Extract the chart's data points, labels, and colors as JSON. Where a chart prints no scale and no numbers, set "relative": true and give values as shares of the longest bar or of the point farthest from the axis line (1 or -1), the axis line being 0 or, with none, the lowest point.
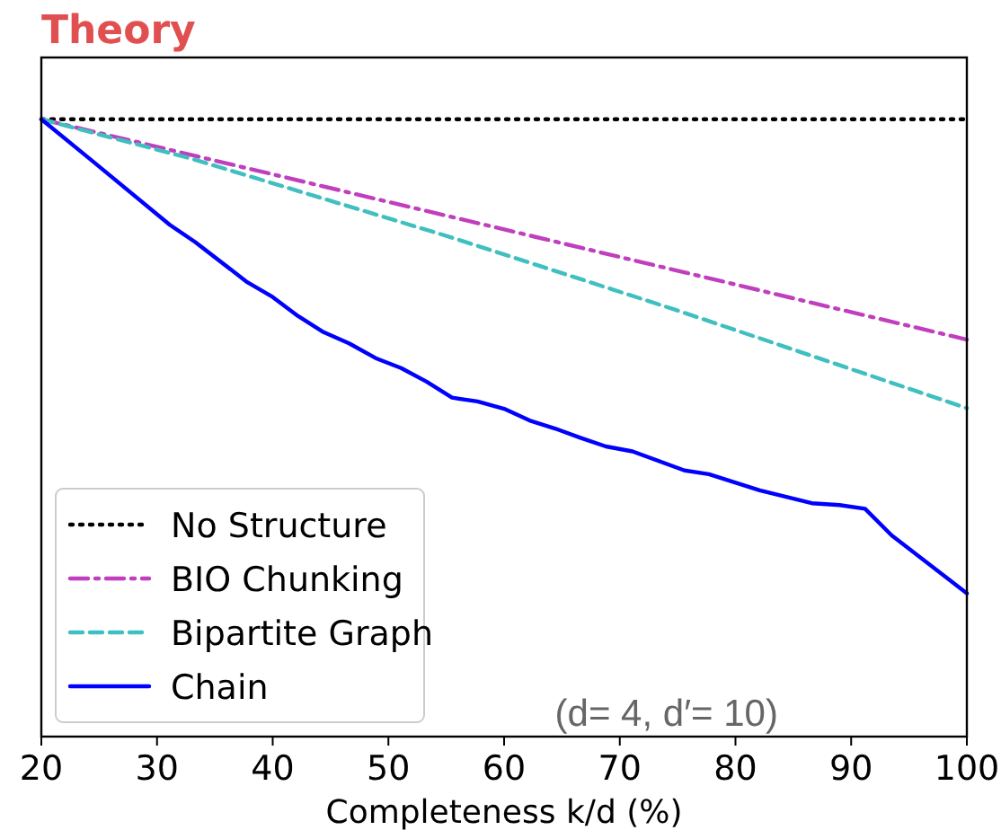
{
  "chart_data": {
    "type": "line",
    "title": "Theory",
    "xlabel": "Completeness k/d (%)",
    "relative": true,
    "xlim": [
      20,
      100
    ],
    "xticks": [
      20,
      30,
      40,
      50,
      60,
      70,
      80,
      90,
      100
    ],
    "tick_labels": "x",
    "legend": "bottom left",
    "annotations": [
      "(d= 4, d′= 10)"
    ],
    "series": [
      {
        "name": "No Structure",
        "color": "#000000",
        "line_style": "dotted",
        "x": [
          20,
          100
        ],
        "values": [
          1,
          1
        ]
      },
      {
        "name": "BIO Chunking",
        "color": "#bf3fbf",
        "line_style": "dashdot",
        "x": [
          20,
          100
        ],
        "values": [
          1,
          0.643
        ]
      },
      {
        "name": "Bipartite Graph",
        "color": "#3fbfbf",
        "line_style": "dashed",
        "x": [
          20,
          33,
          55.2,
          74.7,
          100
        ],
        "values": [
          1,
          0.936,
          0.81,
          0.692,
          0.532
        ]
      },
      {
        "name": "Chain",
        "color": "#0000ff",
        "line_style": "solid",
        "x": [
          20,
          24.5,
          31.1,
          33.3,
          37.8,
          40,
          42.2,
          44.4,
          46.6,
          48.9,
          51.1,
          53.3,
          55.5,
          57.7,
          60,
          62.2,
          64.4,
          66.6,
          68.8,
          71.1,
          75.6,
          77.7,
          82.1,
          86.6,
          89,
          91.2,
          93.5,
          100
        ],
        "values": [
          1,
          0.931,
          0.829,
          0.801,
          0.736,
          0.712,
          0.681,
          0.655,
          0.637,
          0.613,
          0.597,
          0.575,
          0.549,
          0.543,
          0.531,
          0.512,
          0.499,
          0.484,
          0.47,
          0.462,
          0.431,
          0.425,
          0.399,
          0.378,
          0.375,
          0.369,
          0.326,
          0.232
        ]
      }
    ]
  }
}
